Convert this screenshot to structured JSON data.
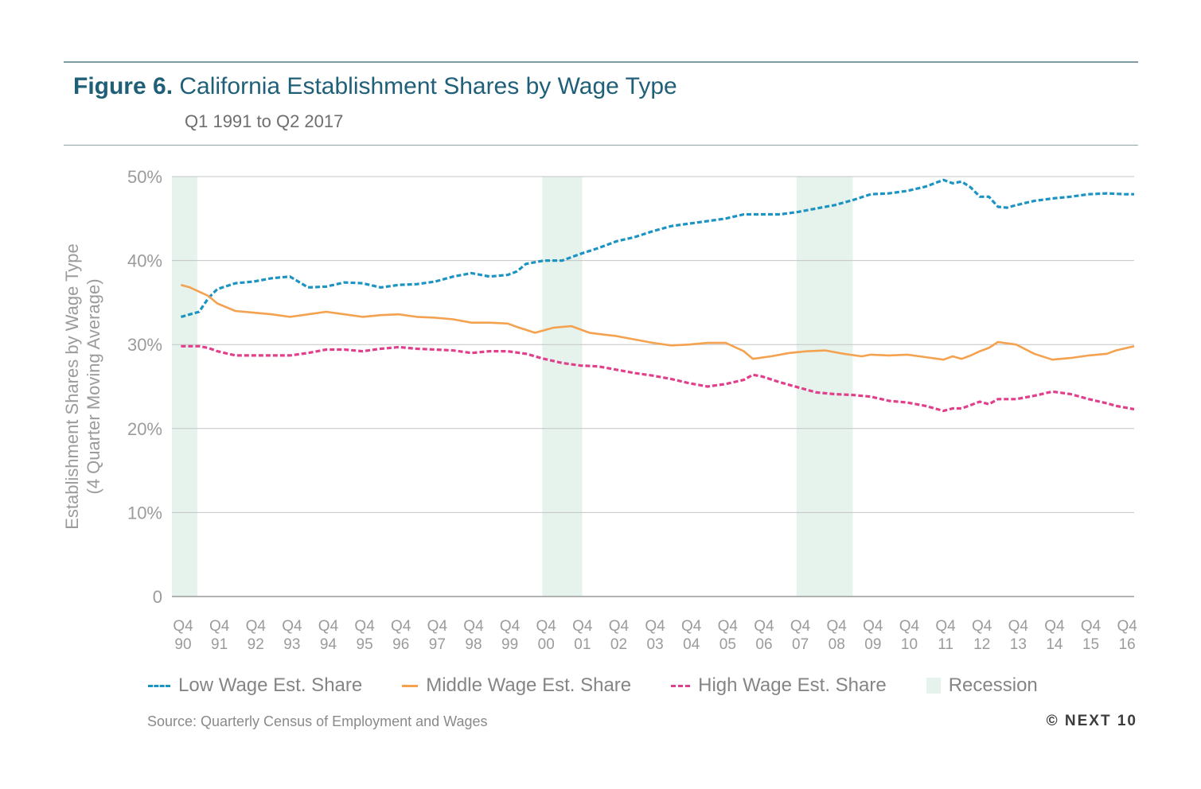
{
  "header": {
    "figure_number": "Figure 6.",
    "title": "California Establishment Shares by Wage Type",
    "subtitle": "Q1 1991 to Q2 2017"
  },
  "chart_data": {
    "type": "line",
    "ylabel_line1": "Establishment Shares by Wage Type",
    "ylabel_line2": "(4 Quarter Moving Average)",
    "ylim": [
      0,
      50
    ],
    "yticks": [
      {
        "value": 0,
        "label": "0"
      },
      {
        "value": 10,
        "label": "10%"
      },
      {
        "value": 20,
        "label": "20%"
      },
      {
        "value": 30,
        "label": "30%"
      },
      {
        "value": 40,
        "label": "40%"
      },
      {
        "value": 50,
        "label": "50%"
      }
    ],
    "xlim": [
      1990.75,
      2017.25
    ],
    "xticks": [
      {
        "value": 1990.75,
        "q": "Q4",
        "yr": "90"
      },
      {
        "value": 1991.75,
        "q": "Q4",
        "yr": "91"
      },
      {
        "value": 1992.75,
        "q": "Q4",
        "yr": "92"
      },
      {
        "value": 1993.75,
        "q": "Q4",
        "yr": "93"
      },
      {
        "value": 1994.75,
        "q": "Q4",
        "yr": "94"
      },
      {
        "value": 1995.75,
        "q": "Q4",
        "yr": "95"
      },
      {
        "value": 1996.75,
        "q": "Q4",
        "yr": "96"
      },
      {
        "value": 1997.75,
        "q": "Q4",
        "yr": "97"
      },
      {
        "value": 1998.75,
        "q": "Q4",
        "yr": "98"
      },
      {
        "value": 1999.75,
        "q": "Q4",
        "yr": "99"
      },
      {
        "value": 2000.75,
        "q": "Q4",
        "yr": "00"
      },
      {
        "value": 2001.75,
        "q": "Q4",
        "yr": "01"
      },
      {
        "value": 2002.75,
        "q": "Q4",
        "yr": "02"
      },
      {
        "value": 2003.75,
        "q": "Q4",
        "yr": "03"
      },
      {
        "value": 2004.75,
        "q": "Q4",
        "yr": "04"
      },
      {
        "value": 2005.75,
        "q": "Q4",
        "yr": "05"
      },
      {
        "value": 2006.75,
        "q": "Q4",
        "yr": "06"
      },
      {
        "value": 2007.75,
        "q": "Q4",
        "yr": "07"
      },
      {
        "value": 2008.75,
        "q": "Q4",
        "yr": "08"
      },
      {
        "value": 2009.75,
        "q": "Q4",
        "yr": "09"
      },
      {
        "value": 2010.75,
        "q": "Q4",
        "yr": "10"
      },
      {
        "value": 2011.75,
        "q": "Q4",
        "yr": "11"
      },
      {
        "value": 2012.75,
        "q": "Q4",
        "yr": "12"
      },
      {
        "value": 2013.75,
        "q": "Q4",
        "yr": "13"
      },
      {
        "value": 2014.75,
        "q": "Q4",
        "yr": "14"
      },
      {
        "value": 2015.75,
        "q": "Q4",
        "yr": "15"
      },
      {
        "value": 2016.75,
        "q": "Q4",
        "yr": "16"
      }
    ],
    "recessions": [
      {
        "start": 1990.75,
        "end": 1991.45
      },
      {
        "start": 2000.95,
        "end": 2002.05
      },
      {
        "start": 2007.95,
        "end": 2009.5
      }
    ],
    "grid": true,
    "legend_position": "bottom",
    "series": [
      {
        "name": "Low Wage Est. Share",
        "color": "#1b94c3",
        "style": "dashed",
        "points": [
          [
            1991.0,
            33.3
          ],
          [
            1991.5,
            33.9
          ],
          [
            1991.75,
            35.5
          ],
          [
            1992.0,
            36.6
          ],
          [
            1992.5,
            37.3
          ],
          [
            1993.0,
            37.5
          ],
          [
            1993.5,
            37.9
          ],
          [
            1994.0,
            38.1
          ],
          [
            1994.5,
            36.8
          ],
          [
            1995.0,
            36.9
          ],
          [
            1995.5,
            37.4
          ],
          [
            1996.0,
            37.3
          ],
          [
            1996.5,
            36.8
          ],
          [
            1997.0,
            37.1
          ],
          [
            1997.5,
            37.2
          ],
          [
            1998.0,
            37.5
          ],
          [
            1998.5,
            38.1
          ],
          [
            1999.0,
            38.5
          ],
          [
            1999.5,
            38.1
          ],
          [
            2000.0,
            38.3
          ],
          [
            2000.25,
            38.7
          ],
          [
            2000.5,
            39.6
          ],
          [
            2001.0,
            40.0
          ],
          [
            2001.5,
            40.0
          ],
          [
            2002.0,
            40.8
          ],
          [
            2002.5,
            41.5
          ],
          [
            2003.0,
            42.3
          ],
          [
            2003.5,
            42.8
          ],
          [
            2004.0,
            43.5
          ],
          [
            2004.5,
            44.1
          ],
          [
            2005.0,
            44.4
          ],
          [
            2005.5,
            44.7
          ],
          [
            2006.0,
            45.0
          ],
          [
            2006.5,
            45.5
          ],
          [
            2007.0,
            45.5
          ],
          [
            2007.5,
            45.5
          ],
          [
            2008.0,
            45.8
          ],
          [
            2008.5,
            46.2
          ],
          [
            2009.0,
            46.6
          ],
          [
            2009.5,
            47.2
          ],
          [
            2010.0,
            47.9
          ],
          [
            2010.5,
            48.0
          ],
          [
            2011.0,
            48.3
          ],
          [
            2011.5,
            48.8
          ],
          [
            2012.0,
            49.6
          ],
          [
            2012.25,
            49.2
          ],
          [
            2012.5,
            49.4
          ],
          [
            2012.75,
            48.7
          ],
          [
            2013.0,
            47.6
          ],
          [
            2013.25,
            47.6
          ],
          [
            2013.5,
            46.4
          ],
          [
            2013.75,
            46.3
          ],
          [
            2014.0,
            46.6
          ],
          [
            2014.5,
            47.1
          ],
          [
            2015.0,
            47.4
          ],
          [
            2015.5,
            47.6
          ],
          [
            2016.0,
            47.9
          ],
          [
            2016.5,
            48.0
          ],
          [
            2017.0,
            47.9
          ],
          [
            2017.25,
            47.9
          ]
        ]
      },
      {
        "name": "Middle Wage Est. Share",
        "color": "#f4a24f",
        "style": "solid",
        "points": [
          [
            1991.0,
            37.1
          ],
          [
            1991.25,
            36.8
          ],
          [
            1991.5,
            36.3
          ],
          [
            1991.75,
            35.8
          ],
          [
            1992.0,
            34.9
          ],
          [
            1992.5,
            34.0
          ],
          [
            1993.0,
            33.8
          ],
          [
            1993.5,
            33.6
          ],
          [
            1994.0,
            33.3
          ],
          [
            1994.5,
            33.6
          ],
          [
            1995.0,
            33.9
          ],
          [
            1995.5,
            33.6
          ],
          [
            1996.0,
            33.3
          ],
          [
            1996.5,
            33.5
          ],
          [
            1997.0,
            33.6
          ],
          [
            1997.5,
            33.3
          ],
          [
            1998.0,
            33.2
          ],
          [
            1998.5,
            33.0
          ],
          [
            1999.0,
            32.6
          ],
          [
            1999.5,
            32.6
          ],
          [
            2000.0,
            32.5
          ],
          [
            2000.25,
            32.1
          ],
          [
            2000.75,
            31.4
          ],
          [
            2001.25,
            32.0
          ],
          [
            2001.75,
            32.2
          ],
          [
            2002.25,
            31.4
          ],
          [
            2003.0,
            31.0
          ],
          [
            2003.5,
            30.6
          ],
          [
            2004.0,
            30.2
          ],
          [
            2004.5,
            29.9
          ],
          [
            2005.0,
            30.0
          ],
          [
            2005.5,
            30.2
          ],
          [
            2006.0,
            30.2
          ],
          [
            2006.5,
            29.2
          ],
          [
            2006.75,
            28.3
          ],
          [
            2007.25,
            28.6
          ],
          [
            2007.75,
            29.0
          ],
          [
            2008.25,
            29.2
          ],
          [
            2008.75,
            29.3
          ],
          [
            2009.25,
            28.9
          ],
          [
            2009.75,
            28.6
          ],
          [
            2010.0,
            28.8
          ],
          [
            2010.5,
            28.7
          ],
          [
            2011.0,
            28.8
          ],
          [
            2011.5,
            28.5
          ],
          [
            2012.0,
            28.2
          ],
          [
            2012.25,
            28.6
          ],
          [
            2012.5,
            28.3
          ],
          [
            2012.75,
            28.7
          ],
          [
            2013.0,
            29.2
          ],
          [
            2013.25,
            29.6
          ],
          [
            2013.5,
            30.3
          ],
          [
            2014.0,
            30.0
          ],
          [
            2014.5,
            28.9
          ],
          [
            2015.0,
            28.2
          ],
          [
            2015.5,
            28.4
          ],
          [
            2016.0,
            28.7
          ],
          [
            2016.5,
            28.9
          ],
          [
            2016.75,
            29.3
          ],
          [
            2017.25,
            29.8
          ]
        ]
      },
      {
        "name": "High Wage Est. Share",
        "color": "#e13f8c",
        "style": "dashed",
        "points": [
          [
            1991.0,
            29.8
          ],
          [
            1991.5,
            29.8
          ],
          [
            1991.75,
            29.6
          ],
          [
            1992.0,
            29.2
          ],
          [
            1992.5,
            28.7
          ],
          [
            1993.0,
            28.7
          ],
          [
            1993.5,
            28.7
          ],
          [
            1994.0,
            28.7
          ],
          [
            1994.5,
            29.0
          ],
          [
            1995.0,
            29.4
          ],
          [
            1995.5,
            29.4
          ],
          [
            1996.0,
            29.2
          ],
          [
            1996.5,
            29.5
          ],
          [
            1997.0,
            29.7
          ],
          [
            1997.5,
            29.5
          ],
          [
            1998.0,
            29.4
          ],
          [
            1998.5,
            29.3
          ],
          [
            1999.0,
            29.0
          ],
          [
            1999.5,
            29.2
          ],
          [
            2000.0,
            29.2
          ],
          [
            2000.5,
            28.9
          ],
          [
            2001.0,
            28.3
          ],
          [
            2001.5,
            27.8
          ],
          [
            2002.0,
            27.5
          ],
          [
            2002.5,
            27.4
          ],
          [
            2003.0,
            27.0
          ],
          [
            2003.5,
            26.6
          ],
          [
            2004.0,
            26.3
          ],
          [
            2004.5,
            25.9
          ],
          [
            2005.0,
            25.4
          ],
          [
            2005.5,
            25.0
          ],
          [
            2006.0,
            25.3
          ],
          [
            2006.5,
            25.8
          ],
          [
            2006.75,
            26.4
          ],
          [
            2007.0,
            26.2
          ],
          [
            2007.5,
            25.5
          ],
          [
            2008.0,
            24.9
          ],
          [
            2008.5,
            24.3
          ],
          [
            2009.0,
            24.1
          ],
          [
            2009.5,
            24.0
          ],
          [
            2010.0,
            23.8
          ],
          [
            2010.5,
            23.3
          ],
          [
            2011.0,
            23.1
          ],
          [
            2011.5,
            22.7
          ],
          [
            2012.0,
            22.1
          ],
          [
            2012.25,
            22.4
          ],
          [
            2012.5,
            22.4
          ],
          [
            2013.0,
            23.2
          ],
          [
            2013.25,
            22.9
          ],
          [
            2013.5,
            23.5
          ],
          [
            2014.0,
            23.5
          ],
          [
            2014.5,
            23.9
          ],
          [
            2015.0,
            24.4
          ],
          [
            2015.5,
            24.1
          ],
          [
            2016.0,
            23.5
          ],
          [
            2016.5,
            23.0
          ],
          [
            2016.75,
            22.7
          ],
          [
            2017.25,
            22.3
          ]
        ]
      }
    ],
    "legend": [
      {
        "label": "Low Wage Est. Share",
        "key": "low"
      },
      {
        "label": "Middle Wage Est. Share",
        "key": "mid"
      },
      {
        "label": "High Wage Est. Share",
        "key": "high"
      },
      {
        "label": "Recession",
        "key": "rec"
      }
    ]
  },
  "footer": {
    "source": "Source: Quarterly Census of Employment and Wages",
    "copyright": "© NEXT 10"
  }
}
